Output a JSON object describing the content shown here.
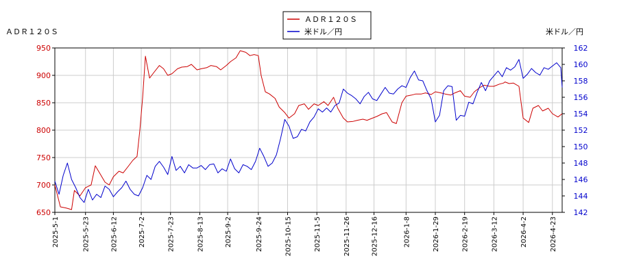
{
  "chart_data": {
    "type": "line",
    "left_title": "ＡＤＲ１２０Ｓ",
    "right_title": "米ドル／円",
    "legend": [
      "ＡＤＲ１２０Ｓ",
      "米ドル／円"
    ],
    "legend_position": "top-center",
    "grid": true,
    "colors": {
      "adr": "#cc0000",
      "usd": "#0000cc",
      "grid": "#cccccc"
    },
    "x_start": "2025-05-01",
    "x_end": "2026-04-30",
    "x_tick_labels": [
      "2025-5-1",
      "2025-5-23",
      "2025-6-12",
      "2025-7-2",
      "2025-7-23",
      "2025-8-13",
      "2025-9-2",
      "2025-9-24",
      "2025-10-15",
      "2025-11-5",
      "2025-11-26",
      "2025-12-16",
      "2026-1-8",
      "2026-1-29",
      "2026-2-19",
      "2026-3-12",
      "2026-4-2",
      "2026-4-23"
    ],
    "y_left": {
      "min": 650,
      "max": 950,
      "ticks": [
        650,
        700,
        750,
        800,
        850,
        900,
        950
      ]
    },
    "y_right": {
      "min": 142,
      "max": 162,
      "ticks": [
        142,
        144,
        146,
        148,
        150,
        152,
        154,
        156,
        158,
        160,
        162
      ]
    },
    "series": [
      {
        "name": "ＡＤＲ１２０Ｓ",
        "axis": "left",
        "x": [
          "2025-05-01",
          "2025-05-05",
          "2025-05-09",
          "2025-05-13",
          "2025-05-15",
          "2025-05-19",
          "2025-05-23",
          "2025-05-27",
          "2025-05-30",
          "2025-06-03",
          "2025-06-06",
          "2025-06-09",
          "2025-06-12",
          "2025-06-16",
          "2025-06-19",
          "2025-06-23",
          "2025-06-26",
          "2025-06-29",
          "2025-07-01",
          "2025-07-03",
          "2025-07-05",
          "2025-07-08",
          "2025-07-11",
          "2025-07-15",
          "2025-07-18",
          "2025-07-21",
          "2025-07-24",
          "2025-07-28",
          "2025-07-31",
          "2025-08-04",
          "2025-08-07",
          "2025-08-11",
          "2025-08-14",
          "2025-08-18",
          "2025-08-21",
          "2025-08-25",
          "2025-08-28",
          "2025-09-01",
          "2025-09-04",
          "2025-09-08",
          "2025-09-11",
          "2025-09-15",
          "2025-09-18",
          "2025-09-21",
          "2025-09-24",
          "2025-09-26",
          "2025-09-29",
          "2025-10-02",
          "2025-10-06",
          "2025-10-09",
          "2025-10-13",
          "2025-10-16",
          "2025-10-20",
          "2025-10-23",
          "2025-10-27",
          "2025-10-30",
          "2025-11-03",
          "2025-11-06",
          "2025-11-10",
          "2025-11-13",
          "2025-11-17",
          "2025-11-20",
          "2025-11-24",
          "2025-11-27",
          "2025-12-01",
          "2025-12-04",
          "2025-12-08",
          "2025-12-11",
          "2025-12-15",
          "2025-12-18",
          "2025-12-22",
          "2025-12-25",
          "2025-12-29",
          "2026-01-01",
          "2026-01-05",
          "2026-01-08",
          "2026-01-12",
          "2026-01-15",
          "2026-01-19",
          "2026-01-22",
          "2026-01-26",
          "2026-01-29",
          "2026-02-02",
          "2026-02-05",
          "2026-02-09",
          "2026-02-12",
          "2026-02-16",
          "2026-02-19",
          "2026-02-23",
          "2026-02-26",
          "2026-03-02",
          "2026-03-05",
          "2026-03-09",
          "2026-03-12",
          "2026-03-16",
          "2026-03-19",
          "2026-03-20",
          "2026-03-23",
          "2026-03-26",
          "2026-03-30",
          "2026-04-02",
          "2026-04-06",
          "2026-04-09",
          "2026-04-13",
          "2026-04-16",
          "2026-04-20",
          "2026-04-23",
          "2026-04-27",
          "2026-04-30"
        ],
        "values": [
          700,
          660,
          658,
          655,
          690,
          680,
          695,
          700,
          735,
          718,
          705,
          700,
          715,
          725,
          722,
          735,
          745,
          752,
          800,
          860,
          935,
          895,
          905,
          918,
          912,
          900,
          903,
          912,
          915,
          916,
          920,
          910,
          912,
          914,
          918,
          916,
          910,
          918,
          925,
          932,
          945,
          942,
          936,
          938,
          936,
          900,
          870,
          866,
          858,
          842,
          832,
          822,
          830,
          845,
          848,
          838,
          848,
          845,
          852,
          845,
          860,
          840,
          822,
          815,
          816,
          818,
          820,
          818,
          822,
          825,
          830,
          832,
          815,
          812,
          850,
          862,
          864,
          866,
          866,
          868,
          865,
          870,
          868,
          866,
          864,
          868,
          872,
          862,
          860,
          870,
          878,
          882,
          880,
          880,
          884,
          886,
          888,
          885,
          886,
          880,
          822,
          814,
          840,
          845,
          835,
          840,
          830,
          824,
          830
        ]
      },
      {
        "name": "米ドル／円",
        "axis": "right",
        "x": [
          "2025-05-01",
          "2025-05-04",
          "2025-05-07",
          "2025-05-10",
          "2025-05-13",
          "2025-05-16",
          "2025-05-19",
          "2025-05-22",
          "2025-05-25",
          "2025-05-28",
          "2025-05-31",
          "2025-06-03",
          "2025-06-06",
          "2025-06-09",
          "2025-06-12",
          "2025-06-15",
          "2025-06-18",
          "2025-06-21",
          "2025-06-24",
          "2025-06-27",
          "2025-06-30",
          "2025-07-03",
          "2025-07-06",
          "2025-07-09",
          "2025-07-12",
          "2025-07-15",
          "2025-07-18",
          "2025-07-21",
          "2025-07-24",
          "2025-07-27",
          "2025-07-30",
          "2025-08-02",
          "2025-08-05",
          "2025-08-08",
          "2025-08-11",
          "2025-08-14",
          "2025-08-17",
          "2025-08-20",
          "2025-08-23",
          "2025-08-26",
          "2025-08-29",
          "2025-09-01",
          "2025-09-04",
          "2025-09-07",
          "2025-09-10",
          "2025-09-13",
          "2025-09-16",
          "2025-09-19",
          "2025-09-22",
          "2025-09-25",
          "2025-09-28",
          "2025-10-01",
          "2025-10-04",
          "2025-10-07",
          "2025-10-10",
          "2025-10-13",
          "2025-10-16",
          "2025-10-19",
          "2025-10-22",
          "2025-10-25",
          "2025-10-28",
          "2025-10-31",
          "2025-11-03",
          "2025-11-06",
          "2025-11-09",
          "2025-11-12",
          "2025-11-15",
          "2025-11-18",
          "2025-11-21",
          "2025-11-24",
          "2025-11-27",
          "2025-11-30",
          "2025-12-03",
          "2025-12-06",
          "2025-12-09",
          "2025-12-12",
          "2025-12-15",
          "2025-12-18",
          "2025-12-21",
          "2025-12-24",
          "2025-12-27",
          "2025-12-30",
          "2026-01-02",
          "2026-01-05",
          "2026-01-08",
          "2026-01-11",
          "2026-01-14",
          "2026-01-17",
          "2026-01-20",
          "2026-01-23",
          "2026-01-26",
          "2026-01-29",
          "2026-02-01",
          "2026-02-04",
          "2026-02-07",
          "2026-02-10",
          "2026-02-13",
          "2026-02-16",
          "2026-02-19",
          "2026-02-22",
          "2026-02-25",
          "2026-02-28",
          "2026-03-03",
          "2026-03-06",
          "2026-03-09",
          "2026-03-12",
          "2026-03-15",
          "2026-03-18",
          "2026-03-21",
          "2026-03-24",
          "2026-03-27",
          "2026-03-30",
          "2026-04-02",
          "2026-04-05",
          "2026-04-08",
          "2026-04-11",
          "2026-04-14",
          "2026-04-17",
          "2026-04-20",
          "2026-04-23",
          "2026-04-26",
          "2026-04-29",
          "2026-04-30"
        ],
        "values": [
          145.8,
          144.2,
          146.5,
          148.0,
          146.0,
          145.0,
          143.8,
          143.2,
          144.8,
          143.5,
          144.2,
          143.8,
          145.2,
          144.8,
          143.9,
          144.5,
          145.0,
          145.8,
          144.8,
          144.2,
          144.0,
          145.0,
          146.5,
          146.0,
          147.6,
          148.2,
          147.5,
          146.6,
          148.8,
          147.1,
          147.6,
          146.8,
          147.8,
          147.4,
          147.4,
          147.7,
          147.2,
          147.8,
          147.9,
          146.8,
          147.3,
          147.0,
          148.5,
          147.3,
          146.8,
          147.8,
          147.6,
          147.2,
          148.2,
          149.8,
          148.8,
          147.6,
          148.0,
          149.0,
          151.0,
          153.3,
          152.5,
          151.0,
          151.2,
          152.1,
          151.9,
          153.0,
          153.6,
          154.6,
          154.2,
          154.7,
          154.2,
          155.0,
          155.3,
          157.0,
          156.5,
          156.2,
          155.8,
          155.2,
          156.1,
          156.6,
          155.8,
          155.6,
          156.4,
          157.2,
          156.5,
          156.4,
          157.0,
          157.4,
          157.2,
          158.4,
          159.2,
          158.1,
          158.0,
          156.8,
          155.8,
          153.0,
          153.8,
          156.8,
          157.4,
          157.3,
          153.2,
          153.8,
          153.7,
          155.4,
          155.2,
          156.6,
          157.8,
          156.8,
          158.0,
          158.6,
          159.2,
          158.5,
          159.6,
          159.3,
          159.7,
          160.6,
          158.3,
          158.8,
          159.5,
          159.0,
          158.7,
          159.6,
          159.4,
          159.8,
          160.2,
          159.6,
          157.2
        ]
      }
    ]
  }
}
